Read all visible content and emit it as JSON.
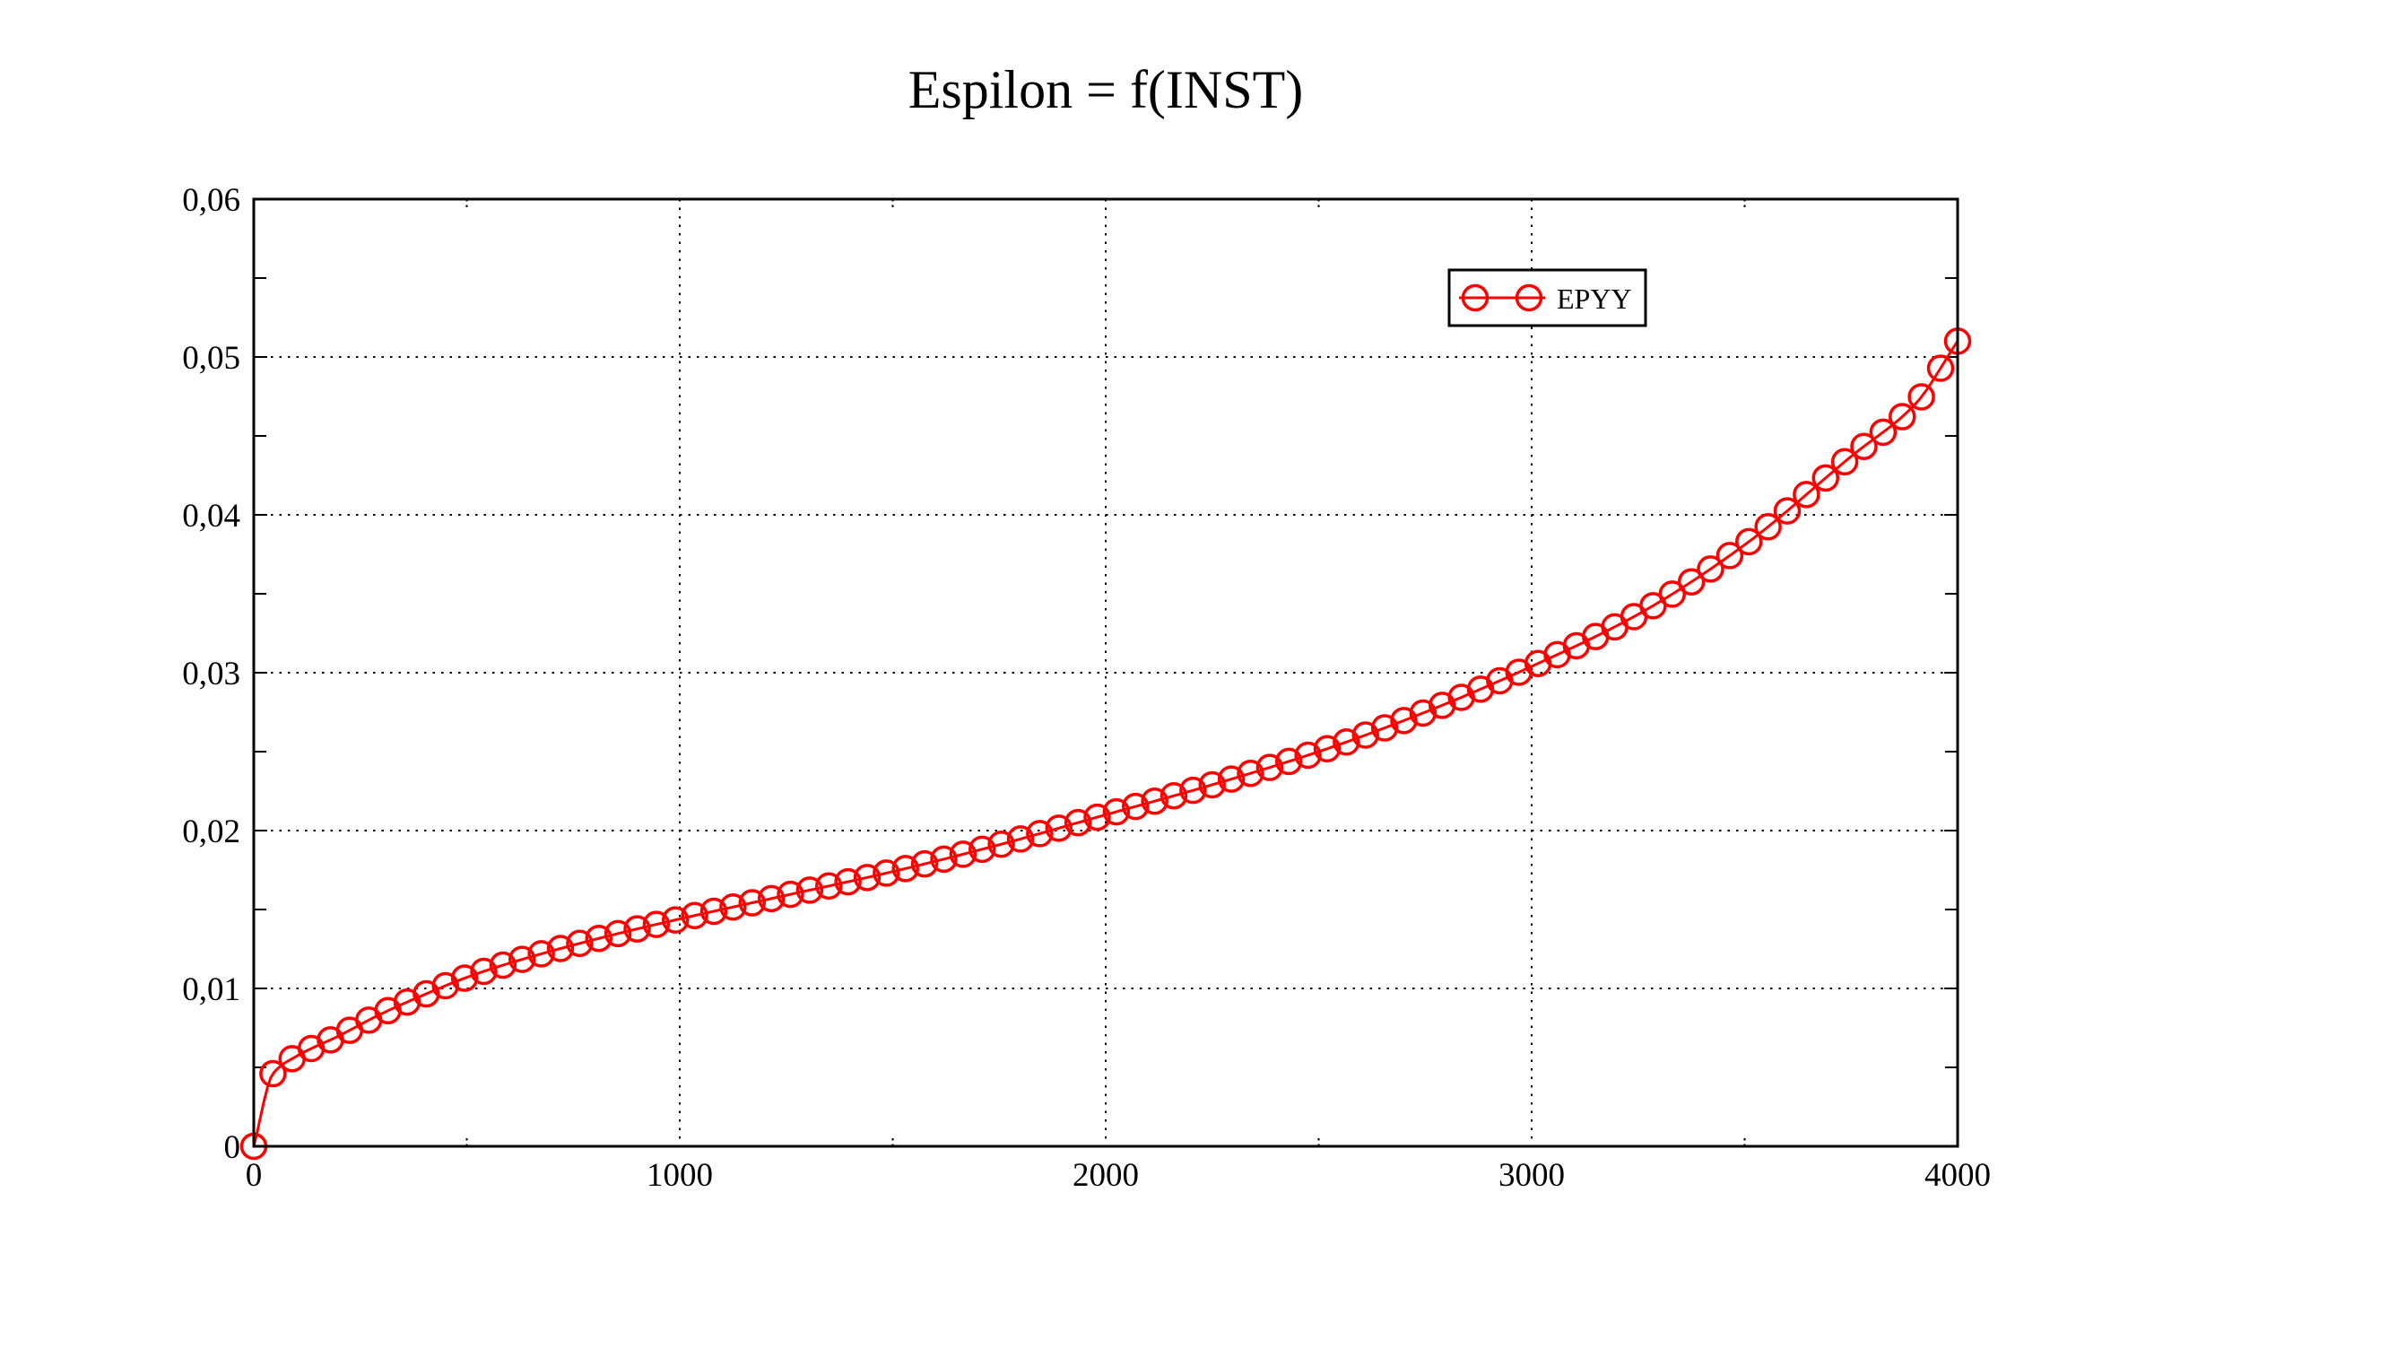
{
  "title": "Espilon = f(INST)",
  "legend": {
    "label": "EPYY",
    "position": "top-right-inside"
  },
  "colors": {
    "series": "#ff0000",
    "axis": "#000000",
    "grid": "#000000",
    "background": "#ffffff"
  },
  "chart_data": {
    "type": "line",
    "title": "Espilon = f(INST)",
    "xlabel": "",
    "ylabel": "",
    "xlim": [
      0,
      4000
    ],
    "ylim": [
      0,
      0.06
    ],
    "grid": true,
    "grid_style": "dotted",
    "legend_position": "top-right-inside",
    "x_major_ticks": [
      0,
      1000,
      2000,
      3000,
      4000
    ],
    "x_tick_labels": [
      "0",
      "1000",
      "2000",
      "3000",
      "4000"
    ],
    "x_minor_ticks": [
      500,
      1500,
      2500,
      3500
    ],
    "y_major_ticks": [
      0,
      0.01,
      0.02,
      0.03,
      0.04,
      0.05,
      0.06
    ],
    "y_tick_labels": [
      "0",
      "0,01",
      "0,02",
      "0,03",
      "0,04",
      "0,05",
      "0,06"
    ],
    "y_minor_ticks": [
      0.005,
      0.015,
      0.025,
      0.035,
      0.045,
      0.055
    ],
    "series": [
      {
        "name": "EPYY",
        "color": "#ff0000",
        "marker": "open-circle",
        "marker_interval_x": 45,
        "keypoints": [
          [
            0,
            0
          ],
          [
            45,
            0.0046
          ],
          [
            100,
            0.0057
          ],
          [
            200,
            0.007
          ],
          [
            300,
            0.0084
          ],
          [
            400,
            0.0096
          ],
          [
            500,
            0.0107
          ],
          [
            600,
            0.0116
          ],
          [
            800,
            0.0131
          ],
          [
            1000,
            0.0144
          ],
          [
            1250,
            0.0159
          ],
          [
            1500,
            0.0174
          ],
          [
            1750,
            0.0191
          ],
          [
            2000,
            0.021
          ],
          [
            2250,
            0.0229
          ],
          [
            2500,
            0.025
          ],
          [
            2750,
            0.0275
          ],
          [
            3000,
            0.0304
          ],
          [
            3250,
            0.0337
          ],
          [
            3500,
            0.0381
          ],
          [
            3750,
            0.0437
          ],
          [
            3900,
            0.047
          ],
          [
            4000,
            0.051
          ]
        ]
      }
    ]
  }
}
